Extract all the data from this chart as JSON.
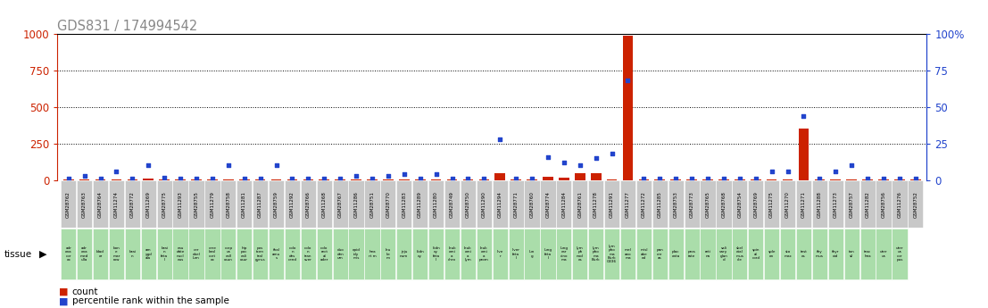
{
  "title": "GDS831 / 174994542",
  "samples": [
    "GSM28762",
    "GSM28763",
    "GSM28764",
    "GSM11274",
    "GSM28772",
    "GSM11269",
    "GSM28775",
    "GSM11293",
    "GSM28755",
    "GSM11279",
    "GSM28758",
    "GSM11281",
    "GSM11287",
    "GSM28759",
    "GSM11292",
    "GSM28766",
    "GSM11268",
    "GSM28767",
    "GSM11286",
    "GSM28751",
    "GSM28770",
    "GSM11283",
    "GSM11289",
    "GSM11280",
    "GSM28749",
    "GSM28750",
    "GSM11290",
    "GSM11294",
    "GSM28771",
    "GSM28760",
    "GSM28774",
    "GSM11284",
    "GSM28761",
    "GSM11278",
    "GSM11291",
    "GSM11277",
    "GSM11272",
    "GSM11285",
    "GSM28753",
    "GSM28773",
    "GSM28765",
    "GSM28768",
    "GSM28754",
    "GSM28769",
    "GSM11275",
    "GSM11270",
    "GSM11271",
    "GSM11288",
    "GSM11273",
    "GSM28757",
    "GSM11282",
    "GSM28756",
    "GSM11276",
    "GSM28752"
  ],
  "tissue_labels": [
    "adr\nena\ncor\nex",
    "adr\nena\nmed\nulla",
    "blad\ner",
    "bon\ne\nmar\nrow",
    "brai\nn",
    "am\nygd\nala",
    "brai\nn\nfeta\nl",
    "cau\ndate\nnucl\neus",
    "cer\nebel\nlum",
    "cere\nbral\ncort\nex",
    "corp\nus\ncall\nosun",
    "hip\npoc\ncali\nosur",
    "pos\ntcen\ntral\ngyrus",
    "thal\namu\ns",
    "colo\nn\ndes\ncend",
    "colo\nn\ntran\nsver",
    "colo\nrect\nal\nader",
    "duo\nden\num",
    "epid\nidy\nmis",
    "hea\nrt m",
    "leu\nke\nm",
    "jeju\nnum",
    "kidn\ney",
    "kidn\ney\nfeta\nl",
    "leuk\nemi\na\nchro",
    "leuk\nemi\na\nlym",
    "leuk\nemi\na\nprom",
    "live\nr",
    "liver\nfeta\nl",
    "lun\ng",
    "lung\nfeta\nl",
    "lung\ncar\ncino\nma",
    "lym\nph\nnod\nes",
    "lym\npho\nma\nBurk",
    "lym\npho\nma\nBurk\nG336",
    "mel\nano\nma",
    "misl\nabe\ned",
    "pan\ncre\nas",
    "plac\nenta",
    "pros\ntate",
    "reti\nna",
    "sali\nvary\nglan\nd",
    "skel\netal\nmus\ncle",
    "spin\nal\ncord",
    "sple\nen",
    "sto\nmac",
    "test\nes",
    "thy\nmus",
    "thyr\noid",
    "ton\nsil",
    "trac\nhea",
    "uter\nus",
    "uter\nus\ncor\npus"
  ],
  "counts": [
    2,
    4,
    2,
    2,
    2,
    10,
    5,
    2,
    2,
    2,
    8,
    2,
    2,
    2,
    2,
    2,
    2,
    8,
    2,
    2,
    2,
    2,
    2,
    2,
    2,
    2,
    4,
    50,
    2,
    2,
    25,
    18,
    45,
    45,
    8,
    990,
    2,
    2,
    2,
    2,
    2,
    2,
    2,
    2,
    8,
    4,
    350,
    2,
    4,
    8,
    2,
    2,
    2,
    2
  ],
  "percentiles": [
    1,
    3,
    1,
    6,
    1,
    10,
    2,
    1,
    1,
    1,
    10,
    1,
    1,
    10,
    1,
    1,
    1,
    1,
    3,
    1,
    3,
    4,
    1,
    4,
    1,
    1,
    1,
    28,
    1,
    1,
    16,
    12,
    10,
    15,
    18,
    68,
    1,
    1,
    1,
    1,
    1,
    1,
    1,
    1,
    6,
    6,
    44,
    1,
    6,
    10,
    1,
    1,
    1,
    1
  ],
  "ylim_left": [
    0,
    1000
  ],
  "ylim_right": [
    0,
    100
  ],
  "yticks_left": [
    0,
    250,
    500,
    750,
    1000
  ],
  "yticks_right": [
    0,
    25,
    50,
    75,
    100
  ],
  "bar_color": "#cc2200",
  "dot_color": "#2244cc",
  "gsm_bg": "#c8c8c8",
  "tissue_bg": "#aaddaa",
  "title_color": "#888888",
  "left_axis_color": "#cc2200",
  "right_axis_color": "#2244cc",
  "grid_color": "#222222"
}
